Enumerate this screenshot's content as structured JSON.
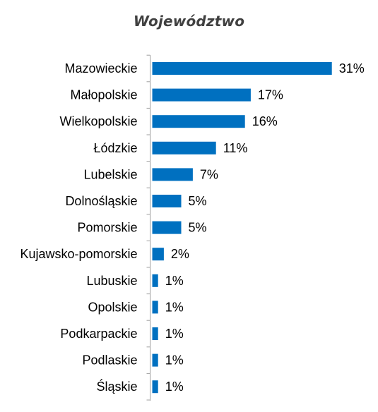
{
  "chart_data": {
    "type": "bar",
    "orientation": "horizontal",
    "title": "Województwo",
    "categories": [
      "Mazowieckie",
      "Małopolskie",
      "Wielkopolskie",
      "Łódzkie",
      "Lubelskie",
      "Dolnośląskie",
      "Pomorskie",
      "Kujawsko-pomorskie",
      "Lubuskie",
      "Opolskie",
      "Podkarpackie",
      "Podlaskie",
      "Śląskie"
    ],
    "values": [
      31,
      17,
      16,
      11,
      7,
      5,
      5,
      2,
      1,
      1,
      1,
      1,
      1
    ],
    "value_labels": [
      "31%",
      "17%",
      "16%",
      "11%",
      "7%",
      "5%",
      "5%",
      "2%",
      "1%",
      "1%",
      "1%",
      "1%",
      "1%"
    ],
    "bar_color": "#0070C0",
    "xlim": [
      0,
      32
    ],
    "grid": false,
    "legend": "none"
  }
}
